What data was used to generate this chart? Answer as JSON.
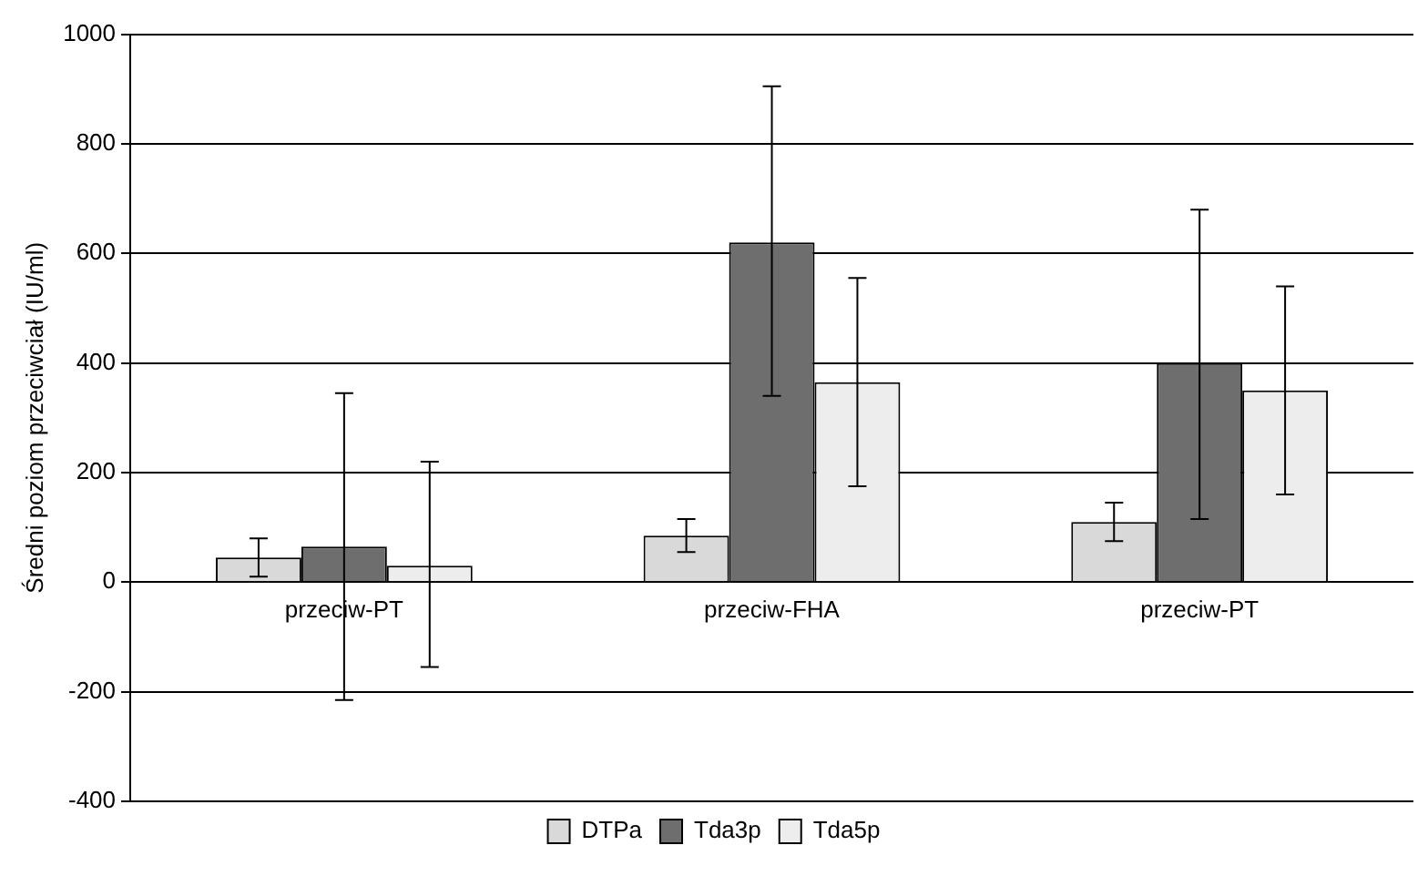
{
  "chart_data": {
    "type": "bar",
    "ylabel": "Średni poziom przeciwciał (IU/ml)",
    "categories": [
      "przeciw-PT",
      "przeciw-FHA",
      "przeciw-PT"
    ],
    "series": [
      {
        "name": "DTPa",
        "color": "#d9d9d9",
        "values": [
          45,
          85,
          110
        ],
        "errors": [
          [
            10,
            80
          ],
          [
            55,
            115
          ],
          [
            75,
            145
          ]
        ]
      },
      {
        "name": "Tda3p",
        "color": "#6e6e6e",
        "values": [
          65,
          620,
          400
        ],
        "errors": [
          [
            -215,
            345
          ],
          [
            340,
            905
          ],
          [
            115,
            680
          ]
        ]
      },
      {
        "name": "Tda5p",
        "color": "#ededed",
        "values": [
          30,
          365,
          350
        ],
        "errors": [
          [
            -155,
            220
          ],
          [
            175,
            555
          ],
          [
            160,
            540
          ]
        ]
      }
    ],
    "ylim": [
      -400,
      1000
    ],
    "yticks": [
      -400,
      -200,
      0,
      200,
      400,
      600,
      800,
      1000
    ],
    "grid": "y",
    "legend": "bottom"
  }
}
